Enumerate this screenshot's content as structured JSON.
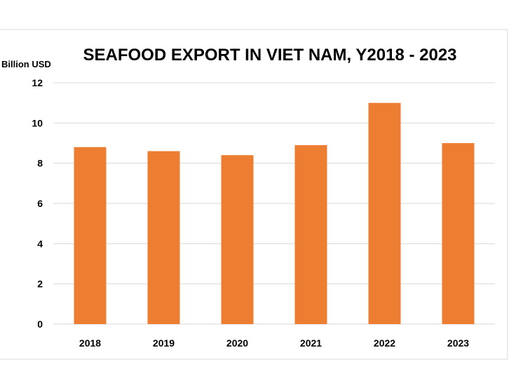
{
  "chart_data": {
    "type": "bar",
    "title": "SEAFOOD EXPORT IN VIET NAM, Y2018 - 2023",
    "unit_label": "Billion USD",
    "xlabel": "",
    "ylabel": "",
    "categories": [
      "2018",
      "2019",
      "2020",
      "2021",
      "2022",
      "2023"
    ],
    "values": [
      8.8,
      8.6,
      8.4,
      8.9,
      11.0,
      9.0
    ],
    "ylim": [
      0,
      12
    ],
    "yticks": [
      0,
      2,
      4,
      6,
      8,
      10,
      12
    ],
    "grid": true,
    "legend": "none",
    "bar_color": "#ED7D31",
    "grid_color": "#D9D9D9",
    "frame_color": "#D9D9D9"
  }
}
